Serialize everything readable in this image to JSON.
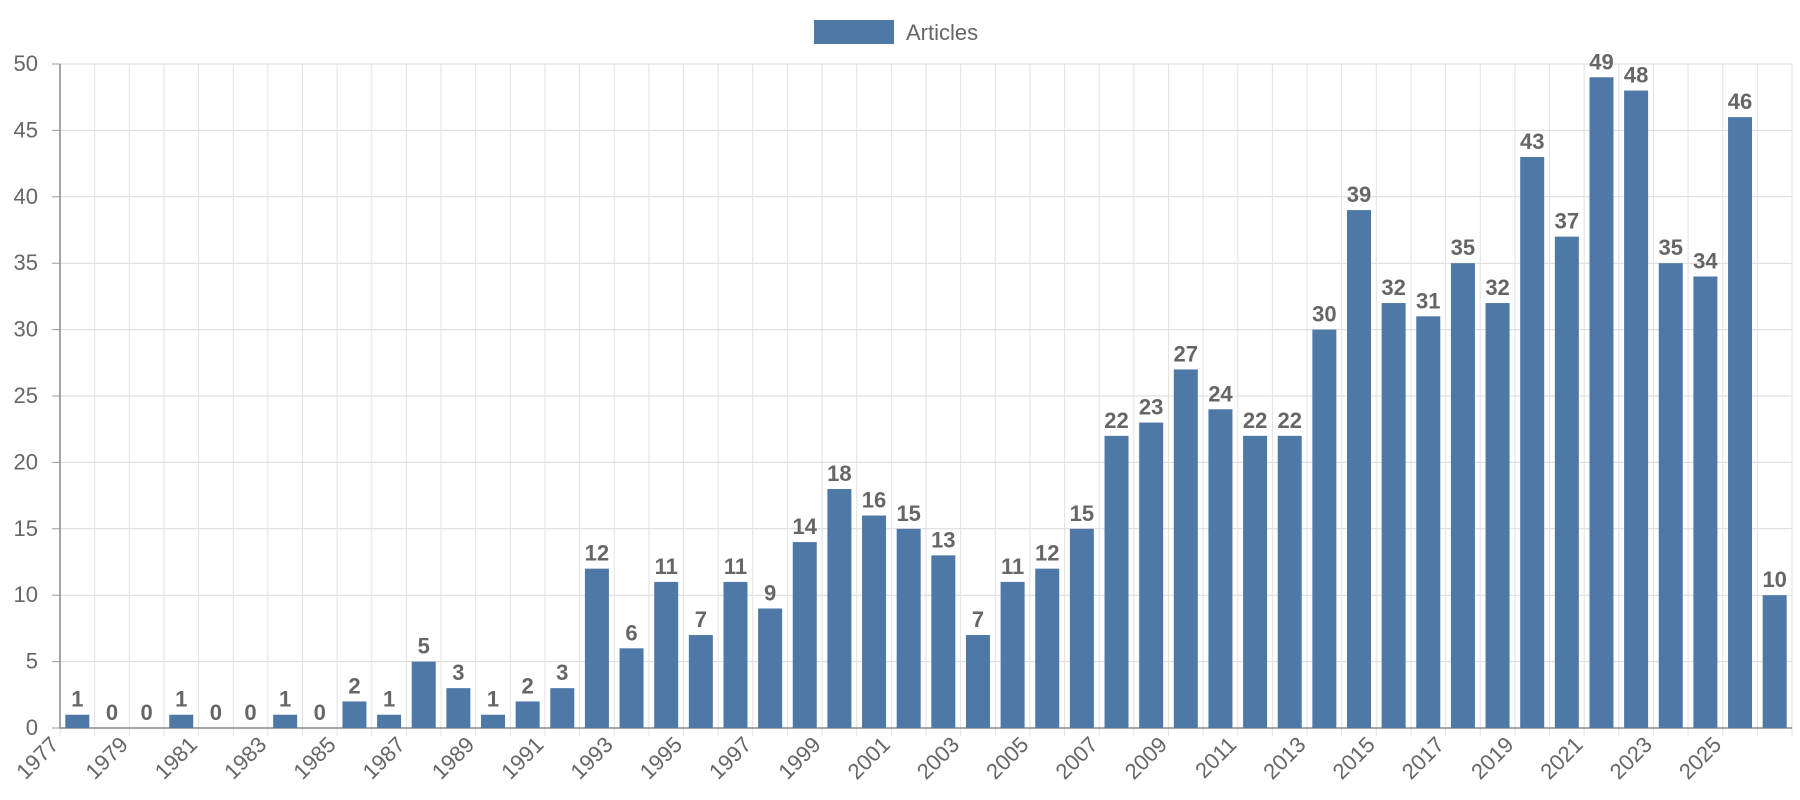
{
  "chart_data": {
    "type": "bar",
    "categories": [
      "1977",
      "1978",
      "1979",
      "1980",
      "1981",
      "1982",
      "1983",
      "1984",
      "1985",
      "1986",
      "1987",
      "1988",
      "1989",
      "1990",
      "1991",
      "1992",
      "1993",
      "1994",
      "1995",
      "1996",
      "1997",
      "1998",
      "1999",
      "2000",
      "2001",
      "2002",
      "2003",
      "2004",
      "2005",
      "2006",
      "2007",
      "2008",
      "2009",
      "2010",
      "2011",
      "2012",
      "2013",
      "2014",
      "2015",
      "2016",
      "2017",
      "2018",
      "2019",
      "2020",
      "2021",
      "2022",
      "2023",
      "2024",
      "2025",
      "2026"
    ],
    "series": [
      {
        "name": "Articles",
        "color": "#4e79a7",
        "values": [
          1,
          0,
          0,
          1,
          0,
          0,
          1,
          0,
          2,
          1,
          5,
          3,
          1,
          2,
          3,
          12,
          6,
          11,
          7,
          11,
          9,
          14,
          18,
          16,
          15,
          13,
          7,
          11,
          12,
          15,
          22,
          23,
          27,
          24,
          22,
          22,
          30,
          39,
          32,
          31,
          35,
          32,
          43,
          37,
          49,
          48,
          35,
          34,
          46,
          10
        ]
      }
    ],
    "x_tick_labels": [
      "1977",
      "1979",
      "1981",
      "1983",
      "1985",
      "1987",
      "1989",
      "1991",
      "1993",
      "1995",
      "1997",
      "1999",
      "2001",
      "2003",
      "2005",
      "2007",
      "2009",
      "2011",
      "2013",
      "2015",
      "2017",
      "2019",
      "2021",
      "2023",
      "2025"
    ],
    "y_ticks": [
      0,
      5,
      10,
      15,
      20,
      25,
      30,
      35,
      40,
      45,
      50
    ],
    "ylim": [
      0,
      50
    ],
    "grid": true,
    "legend_position": "top-center",
    "data_labels": true
  }
}
